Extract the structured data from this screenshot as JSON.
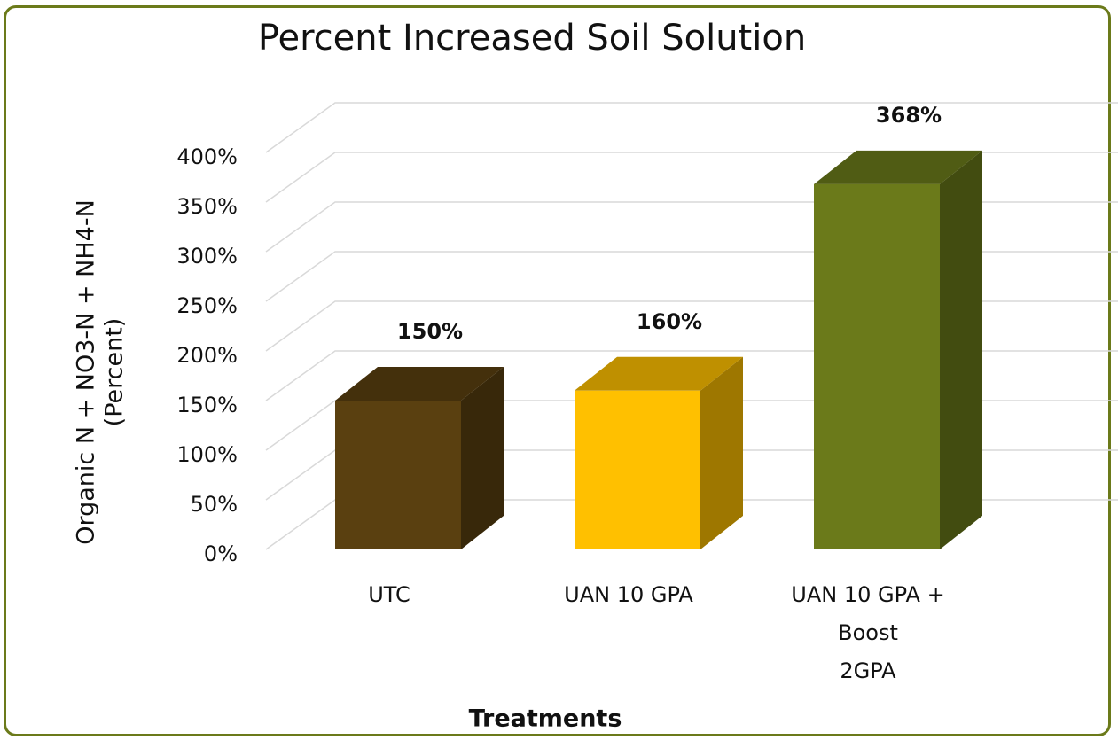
{
  "chart_data": {
    "type": "bar3d",
    "title": "Percent Increased Soil Solution",
    "y_label": [
      "Organic N + NO3-N + NH4-N",
      "(Percent)"
    ],
    "x_label": "Treatments",
    "categories": [
      "UTC",
      "UAN 10 GPA",
      "UAN 10 GPA +\nBoost\n2GPA"
    ],
    "values": [
      150,
      160,
      368
    ],
    "value_labels": [
      "150%",
      "160%",
      "368%"
    ],
    "colors": [
      "#5a4010",
      "#ffc000",
      "#6b7a1a"
    ],
    "ylim": [
      0,
      400
    ],
    "yticks": [
      {
        "value": 0,
        "label": "0%"
      },
      {
        "value": 50,
        "label": "50%"
      },
      {
        "value": 100,
        "label": "100%"
      },
      {
        "value": 150,
        "label": "150%"
      },
      {
        "value": 200,
        "label": "200%"
      },
      {
        "value": 250,
        "label": "250%"
      },
      {
        "value": 300,
        "label": "300%"
      },
      {
        "value": 350,
        "label": "350%"
      },
      {
        "value": 400,
        "label": "400%"
      }
    ],
    "grid": true
  }
}
